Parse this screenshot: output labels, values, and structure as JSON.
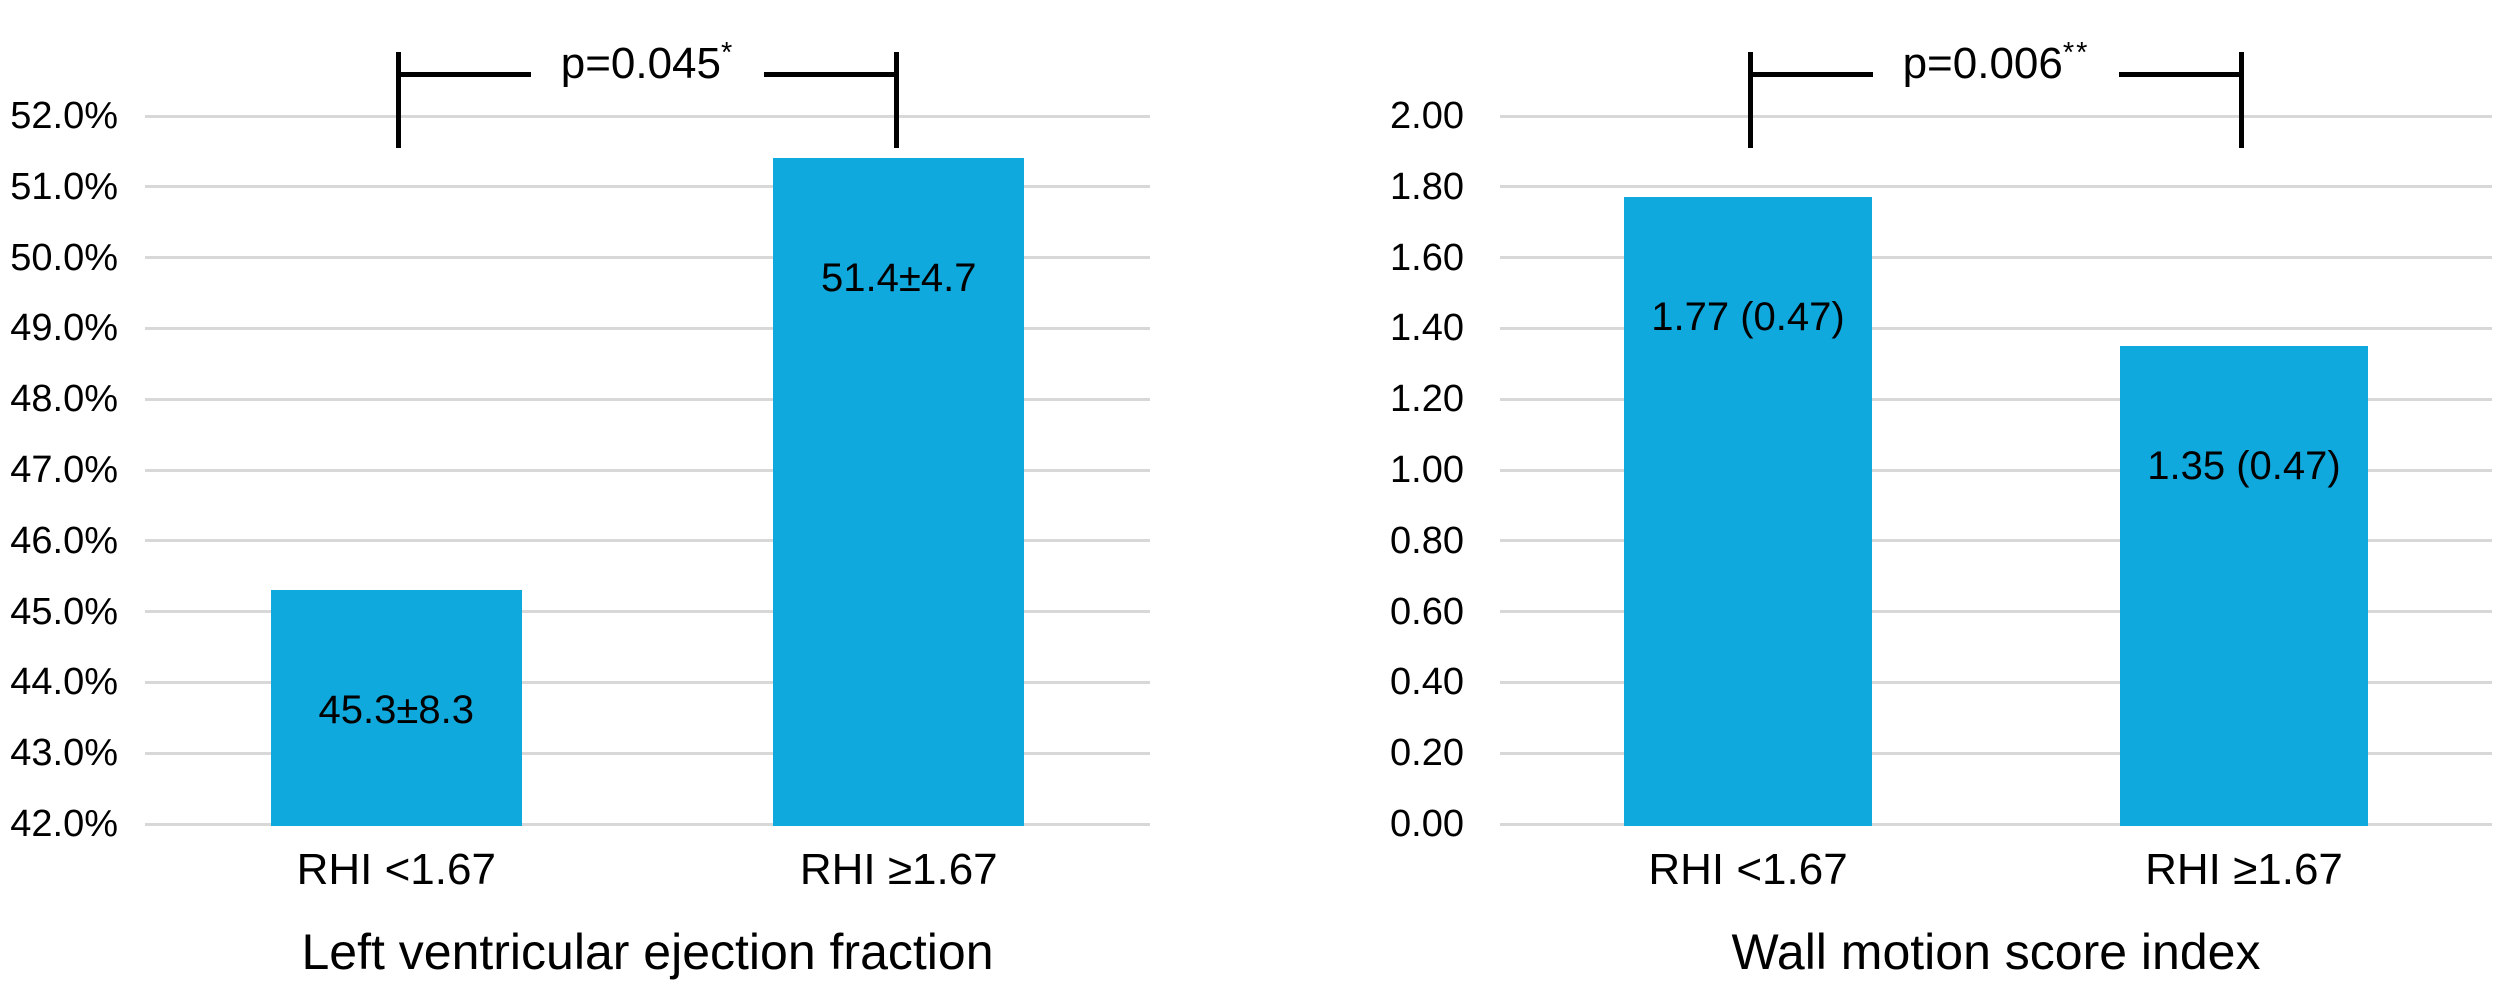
{
  "figure": {
    "background": "#ffffff",
    "text_color": "#000000",
    "bracket_color": "#000000"
  },
  "chart_data": [
    {
      "type": "bar",
      "title": "Left ventricular ejection fraction",
      "categories": [
        "RHI <1.67",
        "RHI ≥1.67"
      ],
      "values": [
        45.3,
        51.4
      ],
      "bar_labels": [
        "45.3±8.3",
        "51.4±4.7"
      ],
      "significance": {
        "label": "p=0.045",
        "superscript": "*"
      },
      "y_axis": {
        "min": 42.0,
        "max": 52.0,
        "step": 1.0,
        "tick_labels": [
          "42.0%",
          "43.0%",
          "44.0%",
          "45.0%",
          "46.0%",
          "47.0%",
          "48.0%",
          "49.0%",
          "50.0%",
          "51.0%",
          "52.0%"
        ]
      },
      "ylim": [
        42.0,
        52.0
      ],
      "grid": true,
      "legend": "none",
      "bar_color": "#10a9dd",
      "gridline_color": "#d8d8d8"
    },
    {
      "type": "bar",
      "title": "Wall motion score index",
      "categories": [
        "RHI <1.67",
        "RHI ≥1.67"
      ],
      "values": [
        1.77,
        1.35
      ],
      "bar_labels": [
        "1.77 (0.47)",
        "1.35 (0.47)"
      ],
      "significance": {
        "label": "p=0.006",
        "superscript": "**"
      },
      "y_axis": {
        "min": 0.0,
        "max": 2.0,
        "step": 0.2,
        "tick_labels": [
          "0.00",
          "0.20",
          "0.40",
          "0.60",
          "0.80",
          "1.00",
          "1.20",
          "1.40",
          "1.60",
          "1.80",
          "2.00"
        ]
      },
      "ylim": [
        0.0,
        2.0
      ],
      "grid": true,
      "legend": "none",
      "bar_color": "#10a9dd",
      "gridline_color": "#d8d8d8"
    }
  ]
}
